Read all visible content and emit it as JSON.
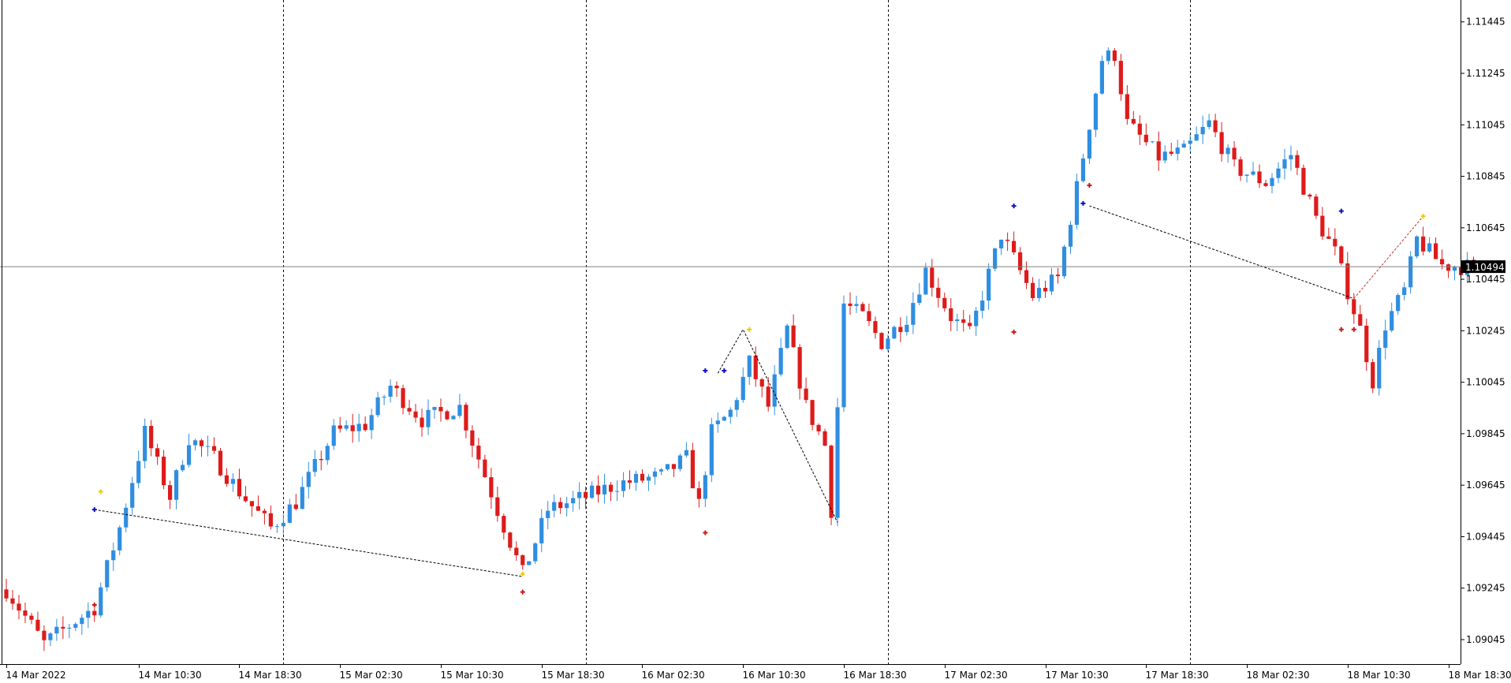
{
  "chart_data": {
    "type": "candlestick",
    "symbol": "",
    "timeframe": "M30",
    "colors": {
      "up": "#2f8ee0",
      "down": "#dd1b1b",
      "grid": "#000000",
      "price_line": "#808080",
      "price_tag_bg": "#000000",
      "price_tag_text": "#ffffff",
      "marker_blue": "#1010c0",
      "marker_red": "#d01818",
      "marker_yellow": "#e8d000"
    },
    "ylim": [
      1.0895,
      1.1153
    ],
    "y_ticks": [
      "1.09045",
      "1.09245",
      "1.09445",
      "1.09645",
      "1.09845",
      "1.10045",
      "1.10245",
      "1.10445",
      "1.10645",
      "1.10845",
      "1.11045",
      "1.11245",
      "1.11445"
    ],
    "x_ticks": [
      {
        "label": "14 Mar 2022",
        "bar": 0
      },
      {
        "label": "14 Mar 10:30",
        "bar": 21
      },
      {
        "label": "14 Mar 18:30",
        "bar": 37
      },
      {
        "label": "15 Mar 02:30",
        "bar": 53
      },
      {
        "label": "15 Mar 10:30",
        "bar": 69
      },
      {
        "label": "15 Mar 18:30",
        "bar": 85
      },
      {
        "label": "16 Mar 02:30",
        "bar": 101
      },
      {
        "label": "16 Mar 10:30",
        "bar": 117
      },
      {
        "label": "16 Mar 18:30",
        "bar": 133
      },
      {
        "label": "17 Mar 02:30",
        "bar": 149
      },
      {
        "label": "17 Mar 10:30",
        "bar": 165
      },
      {
        "label": "17 Mar 18:30",
        "bar": 181
      },
      {
        "label": "18 Mar 02:30",
        "bar": 197
      },
      {
        "label": "18 Mar 10:30",
        "bar": 213
      },
      {
        "label": "18 Mar 18:30",
        "bar": 229
      }
    ],
    "day_separators": [
      44,
      92,
      140,
      188
    ],
    "current_price": "1.10494",
    "path": [
      [
        0,
        1.0924
      ],
      [
        6,
        1.0903
      ],
      [
        14,
        1.0917
      ],
      [
        18,
        1.0948
      ],
      [
        22,
        1.0985
      ],
      [
        26,
        1.096
      ],
      [
        29,
        1.0983
      ],
      [
        33,
        1.0975
      ],
      [
        37,
        1.0962
      ],
      [
        42,
        1.0948
      ],
      [
        46,
        1.0958
      ],
      [
        52,
        1.0985
      ],
      [
        57,
        1.0988
      ],
      [
        61,
        1.1003
      ],
      [
        66,
        1.099
      ],
      [
        72,
        1.0995
      ],
      [
        78,
        1.0955
      ],
      [
        82,
        1.093
      ],
      [
        86,
        1.0955
      ],
      [
        92,
        1.096
      ],
      [
        97,
        1.0965
      ],
      [
        104,
        1.0968
      ],
      [
        108,
        1.0975
      ],
      [
        110,
        1.0957
      ],
      [
        112,
        1.0985
      ],
      [
        115,
        1.0993
      ],
      [
        118,
        1.1012
      ],
      [
        121,
        1.0995
      ],
      [
        124,
        1.1025
      ],
      [
        127,
        1.0995
      ],
      [
        130,
        1.098
      ],
      [
        131,
        1.0955
      ],
      [
        133,
        1.1035
      ],
      [
        136,
        1.103
      ],
      [
        139,
        1.102
      ],
      [
        143,
        1.103
      ],
      [
        146,
        1.1048
      ],
      [
        150,
        1.103
      ],
      [
        153,
        1.1023
      ],
      [
        158,
        1.1062
      ],
      [
        163,
        1.1038
      ],
      [
        167,
        1.1045
      ],
      [
        170,
        1.108
      ],
      [
        174,
        1.113
      ],
      [
        176,
        1.1132
      ],
      [
        178,
        1.1105
      ],
      [
        183,
        1.1092
      ],
      [
        187,
        1.1094
      ],
      [
        191,
        1.1105
      ],
      [
        195,
        1.1088
      ],
      [
        200,
        1.1082
      ],
      [
        204,
        1.1093
      ],
      [
        208,
        1.1068
      ],
      [
        211,
        1.1055
      ],
      [
        213,
        1.104
      ],
      [
        215,
        1.1025
      ],
      [
        217,
        1.1005
      ],
      [
        219,
        1.1027
      ],
      [
        222,
        1.104
      ],
      [
        224,
        1.106
      ],
      [
        228,
        1.105
      ],
      [
        234,
        1.1049
      ]
    ],
    "zigzag": [
      {
        "points": [
          [
            14,
            1.0955
          ],
          [
            82,
            1.0929
          ]
        ],
        "color": "#000000"
      },
      {
        "points": [
          [
            113,
            1.1008
          ],
          [
            117,
            1.1025
          ],
          [
            132,
            1.095
          ]
        ],
        "color": "#000000"
      },
      {
        "points": [
          [
            172,
            1.1073
          ],
          [
            214,
            1.1037
          ]
        ],
        "color": "#000000"
      },
      {
        "points": [
          [
            214,
            1.1037
          ],
          [
            225,
            1.1069
          ]
        ],
        "color": "#c03030"
      }
    ],
    "markers": [
      {
        "bar": 14,
        "price": 1.0955,
        "color": "blue"
      },
      {
        "bar": 14,
        "price": 1.0918,
        "color": "red"
      },
      {
        "bar": 15,
        "price": 1.0962,
        "color": "yellow"
      },
      {
        "bar": 82,
        "price": 1.0923,
        "color": "red"
      },
      {
        "bar": 82,
        "price": 1.093,
        "color": "yellow"
      },
      {
        "bar": 111,
        "price": 1.1009,
        "color": "blue"
      },
      {
        "bar": 114,
        "price": 1.1009,
        "color": "blue"
      },
      {
        "bar": 118,
        "price": 1.1025,
        "color": "yellow"
      },
      {
        "bar": 111,
        "price": 1.0946,
        "color": "red"
      },
      {
        "bar": 160,
        "price": 1.1073,
        "color": "blue"
      },
      {
        "bar": 160,
        "price": 1.1024,
        "color": "red"
      },
      {
        "bar": 171,
        "price": 1.1074,
        "color": "blue"
      },
      {
        "bar": 172,
        "price": 1.1081,
        "color": "red"
      },
      {
        "bar": 212,
        "price": 1.1071,
        "color": "blue"
      },
      {
        "bar": 212,
        "price": 1.1025,
        "color": "red"
      },
      {
        "bar": 214,
        "price": 1.1025,
        "color": "red"
      },
      {
        "bar": 225,
        "price": 1.1069,
        "color": "yellow"
      }
    ]
  }
}
